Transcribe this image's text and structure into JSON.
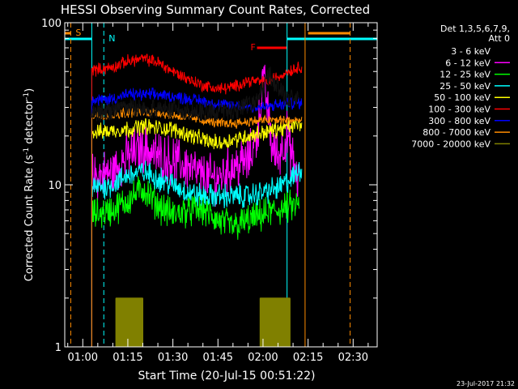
{
  "chart_data": {
    "type": "line",
    "title": "HESSI Observing Summary Count Rates, Corrected",
    "xlabel": "Start Time (20-Jul-15 00:51:22)",
    "ylabel_main": "Corrected Count Rate (s",
    "ylabel_sup1": "-1",
    "ylabel_mid": " detector",
    "ylabel_sup2": "-1",
    "ylabel_end": ")",
    "yscale": "log",
    "ylim": [
      1,
      100
    ],
    "xlim_min": [
      54,
      158
    ],
    "x_ticks": [
      {
        "label": "01:00",
        "min": 60
      },
      {
        "label": "01:15",
        "min": 75
      },
      {
        "label": "01:30",
        "min": 90
      },
      {
        "label": "01:45",
        "min": 105
      },
      {
        "label": "02:00",
        "min": 120
      },
      {
        "label": "02:15",
        "min": 135
      },
      {
        "label": "02:30",
        "min": 150
      }
    ],
    "y_ticks": [
      {
        "label": "1",
        "value": 1
      },
      {
        "label": "10",
        "value": 10
      },
      {
        "label": "100",
        "value": 100
      }
    ],
    "legend": {
      "header1": "Det 1,3,5,6,7,9,",
      "header2": "Att 0",
      "placement": "right"
    },
    "series": [
      {
        "name": "3 - 6 keV",
        "color": "#000000",
        "noise": 0.05,
        "x": [
          63,
          75,
          90,
          105,
          112,
          118,
          122,
          127,
          132
        ],
        "y": [
          27,
          30,
          29,
          28,
          29,
          33,
          48,
          35,
          33
        ]
      },
      {
        "name": "6 - 12 keV",
        "color": "#ff00ff",
        "noise": 0.12,
        "x": [
          63,
          70,
          75,
          80,
          85,
          90,
          95,
          100,
          105,
          110,
          115,
          118,
          120,
          121,
          122,
          123,
          125,
          128,
          130,
          132
        ],
        "y": [
          11,
          12,
          15,
          17,
          15,
          14,
          13,
          11,
          11,
          13,
          14,
          20,
          45,
          35,
          25,
          17,
          15,
          20,
          14,
          10
        ]
      },
      {
        "name": "12 - 25 keV",
        "color": "#00ff00",
        "noise": 0.08,
        "x": [
          63,
          70,
          75,
          80,
          85,
          90,
          95,
          100,
          105,
          110,
          115,
          120,
          125,
          132
        ],
        "y": [
          6.5,
          7,
          8,
          9.5,
          7.5,
          6.5,
          7,
          7,
          6,
          5.5,
          6,
          6.5,
          7,
          7.5
        ]
      },
      {
        "name": "25 - 50 keV",
        "color": "#00ffff",
        "noise": 0.06,
        "x": [
          63,
          70,
          75,
          80,
          85,
          90,
          95,
          100,
          105,
          110,
          115,
          120,
          125,
          130,
          133
        ],
        "y": [
          9.5,
          10,
          11.5,
          12,
          11,
          10,
          9,
          8.5,
          8.5,
          8.5,
          8.5,
          9,
          9.5,
          11,
          13
        ]
      },
      {
        "name": "50 - 100 keV",
        "color": "#ffff00",
        "noise": 0.04,
        "x": [
          63,
          75,
          80,
          90,
          100,
          105,
          110,
          115,
          120,
          125,
          130,
          133
        ],
        "y": [
          21,
          22,
          23,
          22,
          19,
          18,
          19,
          20,
          21,
          22,
          23,
          24
        ]
      },
      {
        "name": "100 - 300 keV",
        "color": "#ff0000",
        "noise": 0.03,
        "x": [
          63,
          70,
          75,
          80,
          85,
          90,
          95,
          100,
          105,
          110,
          115,
          120,
          125,
          128,
          133
        ],
        "y": [
          51,
          53,
          58,
          60,
          57,
          50,
          45,
          41,
          39,
          40,
          44,
          43,
          46,
          50,
          54
        ]
      },
      {
        "name": "300 - 800 keV",
        "color": "#0000ff",
        "noise": 0.03,
        "x": [
          63,
          70,
          75,
          85,
          90,
          100,
          105,
          110,
          120,
          125,
          130,
          133
        ],
        "y": [
          33,
          34,
          36,
          36,
          35,
          33,
          31,
          31,
          30,
          31,
          32,
          32
        ]
      },
      {
        "name": "800 - 7000 keV",
        "color": "#ff8c00",
        "noise": 0.025,
        "x": [
          63,
          70,
          75,
          85,
          90,
          100,
          105,
          110,
          120,
          125,
          130,
          133
        ],
        "y": [
          27,
          27,
          28,
          28,
          27,
          25,
          24,
          24,
          25,
          25,
          25,
          25
        ]
      },
      {
        "name": "7000 - 20000 keV",
        "color": "#808000",
        "noise": 0,
        "x": [
          71,
          80,
          119,
          129
        ],
        "y": [
          1,
          2,
          1,
          2
        ]
      }
    ],
    "annotations": {
      "S": {
        "label": "S",
        "color": "#ff8c00"
      },
      "N": {
        "label": "N",
        "color": "#00ffff"
      },
      "F": {
        "label": "F",
        "color": "#ff0000"
      }
    },
    "flags": {
      "saa_color": "#ff8c00",
      "night_color": "#00ffff",
      "flare_color": "#ff0000",
      "saa_times": [
        56,
        149
      ],
      "night_times": [
        63,
        67,
        128,
        134
      ],
      "night_windows": [
        [
          54,
          63
        ],
        [
          128,
          158
        ]
      ],
      "saa_windows": [
        [
          54,
          56
        ],
        [
          135,
          149
        ]
      ],
      "flare_window": [
        118,
        128
      ]
    }
  },
  "footer": {
    "timestamp": "23-Jul-2017 21:32"
  }
}
